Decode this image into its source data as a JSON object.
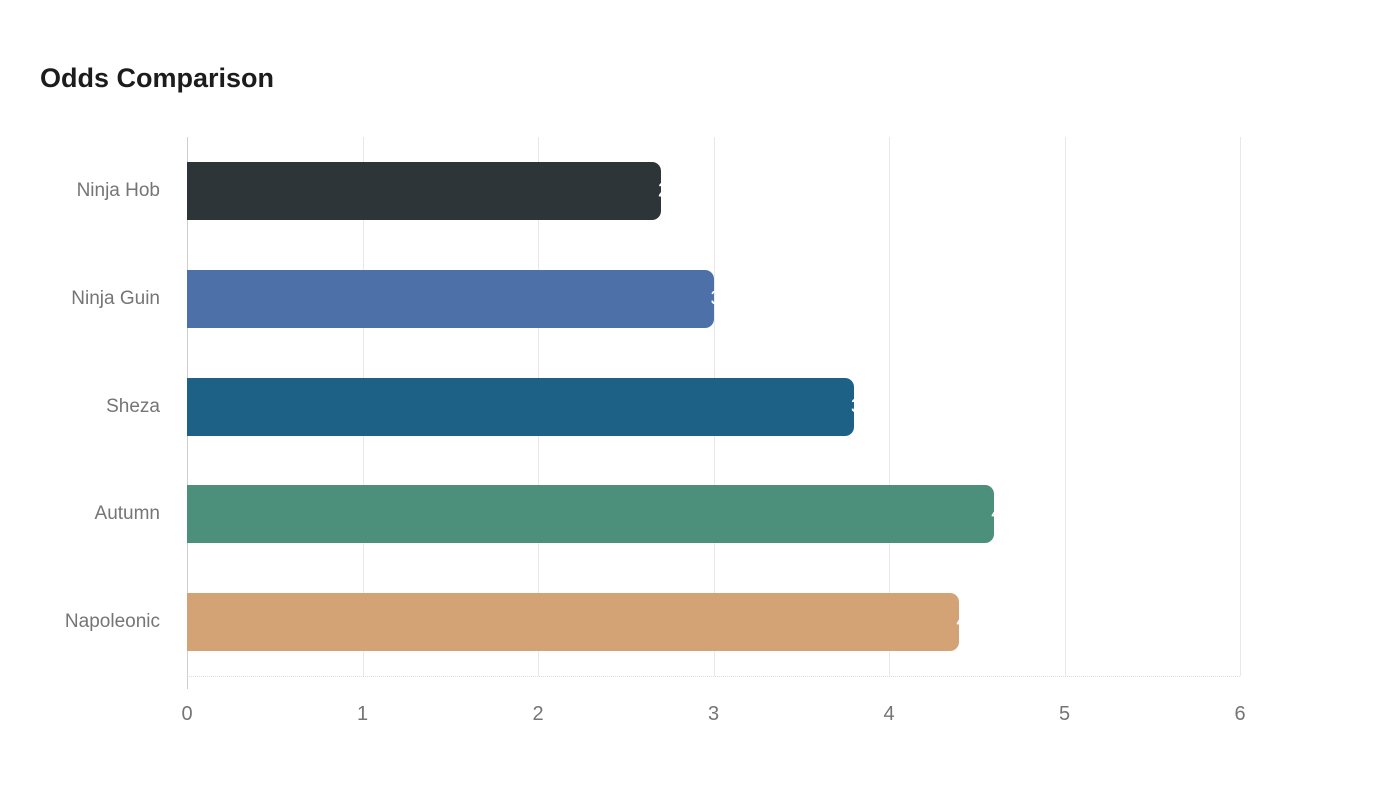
{
  "page": {
    "title": "Odds Comparison"
  },
  "chart_data": {
    "type": "bar",
    "orientation": "horizontal",
    "title": "Odds Comparison",
    "categories": [
      "Ninja Hob",
      "Ninja Guin",
      "Sheza",
      "Autumn",
      "Napoleonic"
    ],
    "values": [
      2.7,
      3,
      3.8,
      4.6,
      4.4
    ],
    "value_labels": [
      "2.7",
      "3",
      "3.8",
      "4.6",
      "4.4"
    ],
    "bar_colors": [
      "#2d3538",
      "#4d70a8",
      "#1d6187",
      "#4c8f7b",
      "#d3a376"
    ],
    "xlabel": "",
    "ylabel": "",
    "xlim": [
      0,
      6
    ],
    "xticks": [
      "0",
      "1",
      "2",
      "3",
      "4",
      "5",
      "6"
    ],
    "grid": "vertical-only",
    "legend": "none",
    "colors": {
      "title_text": "#1c1c1c",
      "axis_text": "#757575",
      "gridline": "#e8e8e8",
      "baseline": "#cfcfcf",
      "annotation_text": "#ffffff",
      "background": "#ffffff"
    }
  }
}
